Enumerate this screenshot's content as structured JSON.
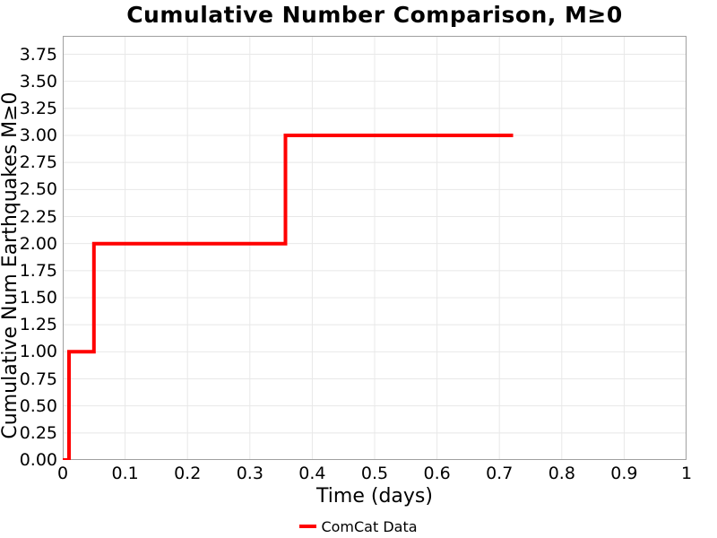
{
  "chart_data": {
    "type": "line",
    "style": "step-post",
    "title": "Cumulative Number Comparison, M≥0",
    "xlabel": "Time (days)",
    "ylabel": "Cumulative Num Earthquakes M≥0",
    "xlim": [
      0,
      1
    ],
    "ylim": [
      0,
      3.92
    ],
    "grid": true,
    "x_ticks": {
      "values": [
        0,
        0.1,
        0.2,
        0.3,
        0.4,
        0.5,
        0.6,
        0.7,
        0.8,
        0.9,
        1
      ],
      "labels": [
        "0",
        "0.1",
        "0.2",
        "0.3",
        "0.4",
        "0.5",
        "0.6",
        "0.7",
        "0.8",
        "0.9",
        "1"
      ]
    },
    "y_ticks": {
      "values": [
        0,
        0.25,
        0.5,
        0.75,
        1,
        1.25,
        1.5,
        1.75,
        2,
        2.25,
        2.5,
        2.75,
        3,
        3.25,
        3.5,
        3.75
      ],
      "labels": [
        "0.00",
        "0.25",
        "0.50",
        "0.75",
        "1.00",
        "1.25",
        "1.50",
        "1.75",
        "2.00",
        "2.25",
        "2.50",
        "2.75",
        "3.00",
        "3.25",
        "3.50",
        "3.75"
      ]
    },
    "series": [
      {
        "name": "ComCat Data",
        "color": "#ff0000",
        "line_width": 4,
        "x": [
          0,
          0.01,
          0.01,
          0.05,
          0.05,
          0.357,
          0.357,
          0.722
        ],
        "y": [
          0,
          0,
          1,
          1,
          2,
          2,
          3,
          3
        ]
      }
    ],
    "legend": {
      "position": "bottom-center",
      "entries": [
        "ComCat Data"
      ]
    }
  },
  "colors": {
    "line": "#ff0000",
    "grid": "#e8e8e8",
    "frame": "#a0a0a0",
    "background": "#ffffff",
    "text": "#000000"
  }
}
